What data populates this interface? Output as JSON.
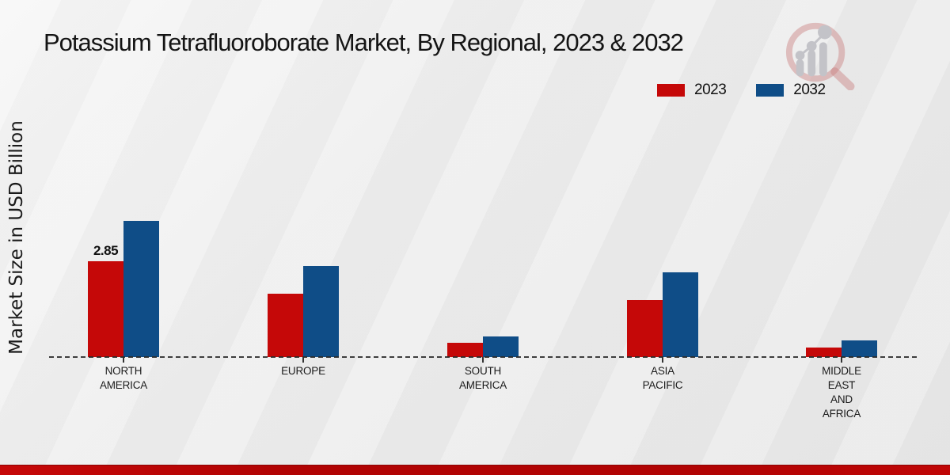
{
  "title": "Potassium Tetrafluoroborate Market, By Regional, 2023 & 2032",
  "ylabel": "Market Size in USD Billion",
  "legend": {
    "items": [
      {
        "label": "2023",
        "color": "#c50808"
      },
      {
        "label": "2032",
        "color": "#0f4d87"
      }
    ]
  },
  "logo_name": "magnifier-bar-chart-logo",
  "footer": {
    "band_color": "#b10303"
  },
  "chart_data": {
    "type": "bar",
    "title": "Potassium Tetrafluoroborate Market, By Regional, 2023 & 2032",
    "xlabel": "",
    "ylabel": "Market Size in USD Billion",
    "categories": [
      "NORTH AMERICA",
      "EUROPE",
      "SOUTH AMERICA",
      "ASIA PACIFIC",
      "MIDDLE EAST AND AFRICA"
    ],
    "category_label_lines": [
      [
        "NORTH",
        "AMERICA"
      ],
      [
        "EUROPE"
      ],
      [
        "SOUTH",
        "AMERICA"
      ],
      [
        "ASIA",
        "PACIFIC"
      ],
      [
        "MIDDLE",
        "EAST",
        "AND",
        "AFRICA"
      ]
    ],
    "series": [
      {
        "name": "2023",
        "color": "#c50808",
        "values": [
          2.85,
          1.88,
          0.42,
          1.7,
          0.28
        ]
      },
      {
        "name": "2032",
        "color": "#0f4d87",
        "values": [
          4.05,
          2.7,
          0.61,
          2.52,
          0.49
        ]
      }
    ],
    "annotations": [
      {
        "series": "2023",
        "category": "NORTH AMERICA",
        "text": "2.85"
      }
    ],
    "ylim": [
      0,
      5
    ],
    "grid": false,
    "legend_position": "top-right",
    "baseline_style": "dashed"
  }
}
